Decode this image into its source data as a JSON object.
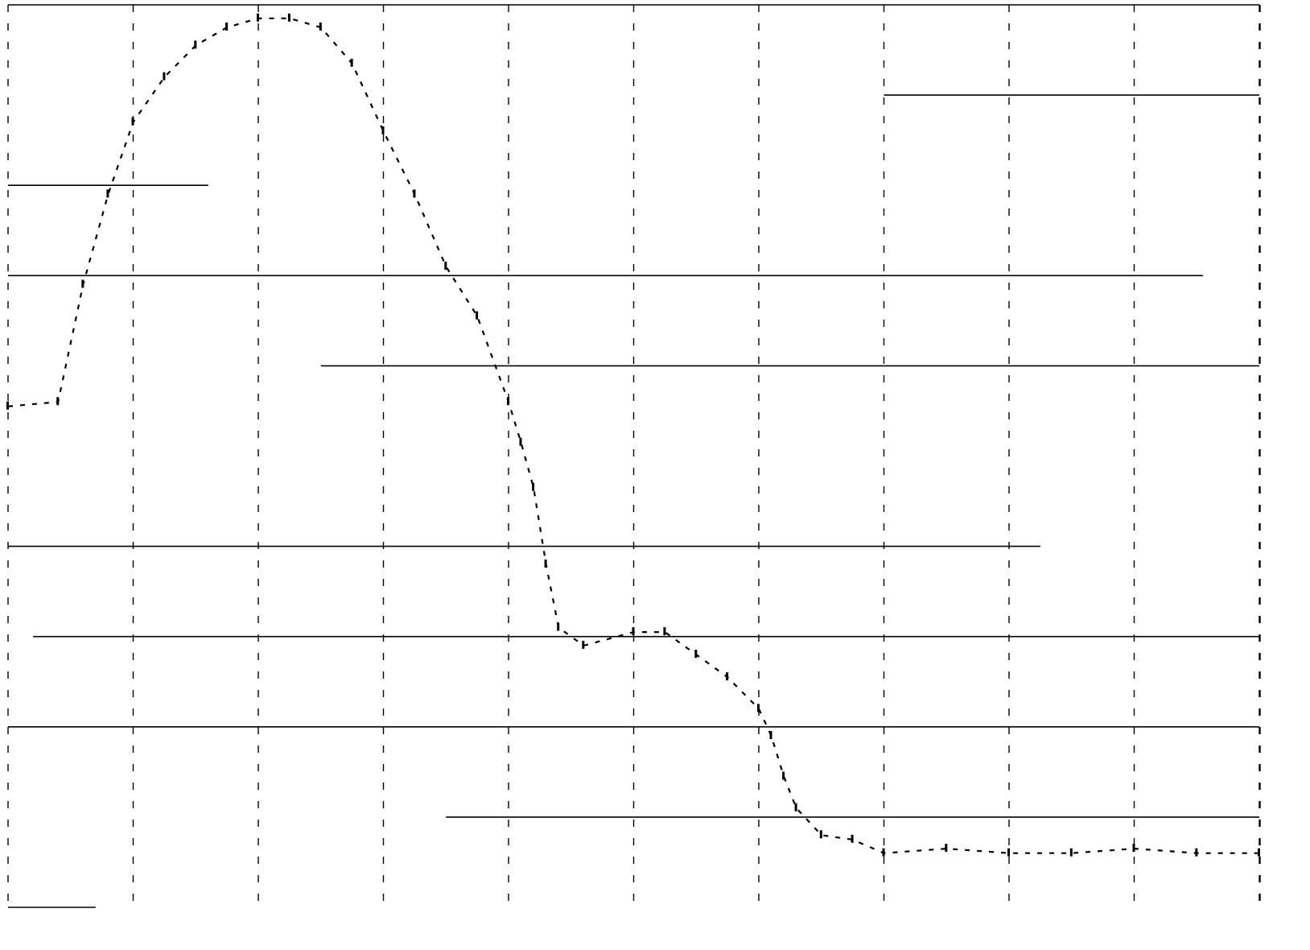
{
  "colors": {
    "background": "#ffffff",
    "ink": "#000000"
  },
  "chart_data": {
    "type": "line",
    "title": "",
    "xlabel": "",
    "ylabel": "",
    "xlim": [
      0,
      10
    ],
    "ylim": [
      -5,
      5
    ],
    "grid": {
      "vertical": "dashed",
      "horizontal": "solid-partial"
    },
    "legend": "none",
    "series": [
      {
        "x": [
          0,
          0.4,
          0.6,
          0.8,
          1.0,
          1.25,
          1.5,
          1.75,
          2.0,
          2.25,
          2.5,
          2.75,
          3.0,
          3.25,
          3.5,
          3.75,
          4.0,
          4.1,
          4.2,
          4.3,
          4.4,
          4.6,
          5.0,
          5.25,
          5.5,
          5.75,
          6.0,
          6.1,
          6.2,
          6.3,
          6.5,
          6.75,
          7.0,
          7.5,
          8.0,
          8.5,
          9.0,
          9.5,
          10.0
        ],
        "y": [
          0.55,
          0.6,
          1.9,
          2.9,
          3.7,
          4.2,
          4.55,
          4.75,
          4.85,
          4.85,
          4.75,
          4.35,
          3.6,
          2.9,
          2.1,
          1.55,
          0.6,
          0.15,
          -0.35,
          -1.2,
          -1.9,
          -2.1,
          -1.95,
          -1.95,
          -2.2,
          -2.45,
          -2.8,
          -3.1,
          -3.55,
          -3.9,
          -4.2,
          -4.25,
          -4.4,
          -4.35,
          -4.4,
          -4.4,
          -4.35,
          -4.4,
          -4.4
        ]
      }
    ]
  }
}
